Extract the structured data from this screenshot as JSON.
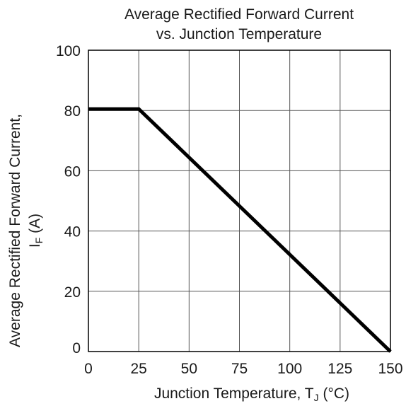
{
  "chart_data": {
    "type": "line",
    "title_lines": [
      "Average Rectified Forward Current",
      "vs. Junction Temperature"
    ],
    "xlabel": {
      "main": "Junction Temperature, T",
      "sub": "J",
      "tail": " (°C)"
    },
    "ylabel": {
      "line1": "Average Rectified Forward Current,",
      "main": "I",
      "sub": "F",
      "tail": " (A)"
    },
    "xlim": [
      0,
      150
    ],
    "ylim": [
      0,
      100
    ],
    "xticks": [
      0,
      25,
      50,
      75,
      100,
      125,
      150
    ],
    "yticks": [
      0,
      20,
      40,
      60,
      80,
      100
    ],
    "grid": true,
    "series": [
      {
        "x": [
          0,
          25,
          150
        ],
        "y": [
          80.5,
          80.5,
          0
        ],
        "color": "#000000"
      }
    ]
  }
}
